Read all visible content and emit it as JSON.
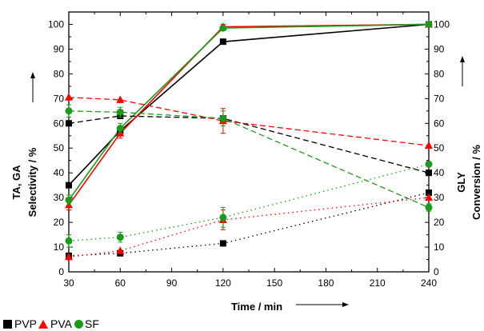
{
  "chart_data": {
    "type": "line",
    "x": [
      30,
      60,
      120,
      240
    ],
    "xlabel": "Time / min",
    "xlim": [
      30,
      240
    ],
    "xticks": [
      30,
      60,
      90,
      120,
      150,
      180,
      210,
      240
    ],
    "ylabel_left": [
      "TA, GA",
      "Selectivity / %"
    ],
    "ylabel_right": [
      "GLY",
      "Conversion / %"
    ],
    "ylim": [
      0,
      105
    ],
    "yticks": [
      0,
      10,
      20,
      30,
      40,
      50,
      60,
      70,
      80,
      90,
      100
    ],
    "series": [
      {
        "name": "PVP",
        "color": "#000000",
        "marker": "square",
        "measure": "GLY conversion",
        "style": "solid",
        "values": [
          35,
          57,
          93,
          100
        ],
        "err": [
          0,
          0,
          1,
          0
        ]
      },
      {
        "name": "PVA",
        "color": "#ff0000",
        "marker": "triangle",
        "measure": "GLY conversion",
        "style": "solid",
        "values": [
          27,
          56,
          99,
          100
        ],
        "err": [
          2,
          2,
          1,
          0
        ]
      },
      {
        "name": "SF",
        "color": "#1a9c1a",
        "marker": "circle",
        "measure": "GLY conversion",
        "style": "solid",
        "values": [
          29,
          58,
          98.5,
          100
        ],
        "err": [
          2,
          2,
          1,
          0
        ]
      },
      {
        "name": "PVP",
        "color": "#000000",
        "marker": "square",
        "measure": "TA selectivity",
        "style": "dashed",
        "values": [
          60,
          63,
          62,
          40
        ],
        "err": [
          0,
          0,
          0,
          0
        ]
      },
      {
        "name": "PVA",
        "color": "#ff0000",
        "marker": "triangle",
        "measure": "TA selectivity",
        "style": "dashed",
        "values": [
          70.5,
          69.5,
          61,
          51
        ],
        "err": [
          0,
          0,
          5,
          0
        ]
      },
      {
        "name": "SF",
        "color": "#1a9c1a",
        "marker": "circle",
        "measure": "TA selectivity",
        "style": "dashed",
        "values": [
          65,
          64.5,
          62,
          26
        ],
        "err": [
          2.5,
          2,
          3,
          1.5
        ]
      },
      {
        "name": "PVP",
        "color": "#000000",
        "marker": "square",
        "measure": "GA selectivity",
        "style": "dotted",
        "values": [
          6.5,
          7.5,
          11.5,
          32
        ],
        "err": [
          0,
          0,
          0,
          0
        ]
      },
      {
        "name": "PVA",
        "color": "#ff0000",
        "marker": "triangle",
        "measure": "GA selectivity",
        "style": "dotted",
        "values": [
          6,
          8.5,
          21,
          30
        ],
        "err": [
          0,
          0,
          4,
          0
        ]
      },
      {
        "name": "SF",
        "color": "#1a9c1a",
        "marker": "circle",
        "measure": "GA selectivity",
        "style": "dotted",
        "values": [
          12.5,
          14,
          22,
          43.5
        ],
        "err": [
          2.5,
          2,
          4,
          0
        ]
      }
    ],
    "legend": {
      "position": "bottom-left",
      "entries": [
        {
          "label": "PVP",
          "marker": "square",
          "color": "#000000"
        },
        {
          "label": "PVA",
          "marker": "triangle",
          "color": "#ff0000"
        },
        {
          "label": "SF",
          "marker": "circle",
          "color": "#1a9c1a"
        }
      ]
    },
    "grid": false
  }
}
